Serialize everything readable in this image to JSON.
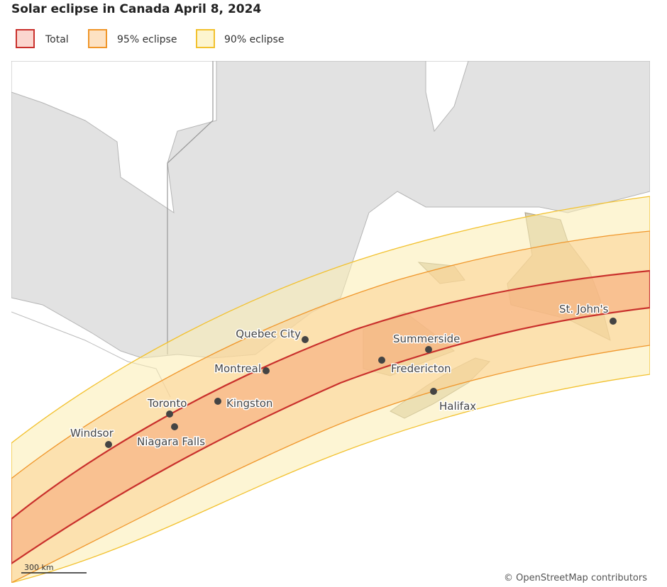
{
  "title": "Solar eclipse in Canada April 8, 2024",
  "legend": [
    "Total",
    "95% eclipse",
    "90% eclipse"
  ],
  "cities": [
    "Quebec City",
    "Montreal",
    "Kingston",
    "Toronto",
    "Niagara Falls",
    "Windsor",
    "Summerside",
    "Fredericton",
    "Halifax",
    "St. John's"
  ],
  "scale": "300 km",
  "attribution": "© OpenStreetMap contributors"
}
